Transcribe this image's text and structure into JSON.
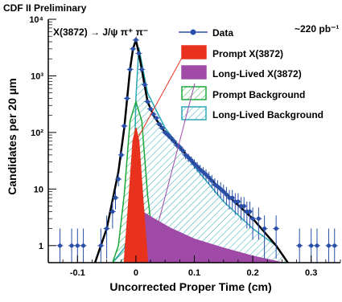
{
  "chart_data": {
    "type": "scatter",
    "top_label": "CDF II Preliminary",
    "process_label": "X(3872) → J/ψ π⁺ π⁻",
    "luminosity": "~220 pb⁻¹",
    "xlabel": "Uncorrected Proper Time (cm)",
    "ylabel": "Candidates per 20  μm",
    "x_scale": "linear",
    "y_scale": "log",
    "xlim": [
      -0.15,
      0.35
    ],
    "ylim": [
      0.5,
      10000
    ],
    "x_ticks": [
      -0.1,
      0,
      0.1,
      0.2,
      0.3
    ],
    "x_tick_labels": [
      "-0.1",
      "0",
      "0.1",
      "0.2",
      "0.3"
    ],
    "y_ticks": [
      1,
      10,
      100,
      1000,
      10000
    ],
    "y_tick_labels": [
      "1",
      "10",
      "10²",
      "10³",
      "10⁴"
    ],
    "legend_position": "top-right",
    "legend": [
      {
        "label": "Data",
        "kind": "marker",
        "color": "#2a4fa8"
      },
      {
        "label": "Prompt X(3872)",
        "kind": "fill",
        "color": "#e8321e"
      },
      {
        "label": "Long-Lived X(3872)",
        "kind": "fill",
        "color": "#a04aa8"
      },
      {
        "label": "Prompt Background",
        "kind": "hatch",
        "color": "#1aa83a"
      },
      {
        "label": "Long-Lived Background",
        "kind": "hatch",
        "color": "#2aa8b8"
      }
    ],
    "colors": {
      "data": "#2a4fa8",
      "total_fit": "#000000",
      "prompt_x": "#e8321e",
      "long_lived_x": "#a04aa8",
      "prompt_bg": "#1aa83a",
      "long_lived_bg": "#2aa8b8"
    },
    "series": [
      {
        "name": "Data",
        "x": [
          -0.13,
          -0.11,
          -0.1,
          -0.09,
          -0.06,
          -0.05,
          -0.04,
          -0.035,
          -0.03,
          -0.025,
          -0.02,
          -0.015,
          -0.01,
          -0.005,
          0.0,
          0.005,
          0.01,
          0.015,
          0.02,
          0.025,
          0.03,
          0.035,
          0.04,
          0.045,
          0.05,
          0.055,
          0.06,
          0.065,
          0.07,
          0.075,
          0.08,
          0.085,
          0.09,
          0.095,
          0.1,
          0.105,
          0.11,
          0.115,
          0.12,
          0.125,
          0.13,
          0.135,
          0.14,
          0.145,
          0.15,
          0.155,
          0.16,
          0.165,
          0.17,
          0.175,
          0.18,
          0.185,
          0.19,
          0.195,
          0.2,
          0.21,
          0.22,
          0.24,
          0.28,
          0.3,
          0.31,
          0.33,
          0.34
        ],
        "y": [
          1,
          1,
          1,
          1,
          1,
          2,
          4,
          7,
          15,
          40,
          130,
          400,
          1300,
          3000,
          4300,
          2500,
          1300,
          700,
          350,
          260,
          210,
          180,
          140,
          120,
          100,
          90,
          80,
          70,
          60,
          55,
          48,
          40,
          36,
          32,
          28,
          25,
          22,
          20,
          18,
          16,
          14,
          12,
          11,
          10,
          9,
          8,
          7,
          7,
          6,
          6,
          5,
          5,
          4,
          4,
          3,
          3,
          2,
          2,
          1,
          1,
          1,
          1,
          1
        ]
      },
      {
        "name": "Prompt X(3872)",
        "x": [
          -0.02,
          -0.01,
          -0.005,
          0.0,
          0.005,
          0.01,
          0.02
        ],
        "y": [
          0.5,
          12,
          70,
          120,
          70,
          12,
          0.5
        ]
      },
      {
        "name": "Long-Lived X(3872)",
        "x": [
          0.0,
          0.01,
          0.03,
          0.06,
          0.1,
          0.15,
          0.2,
          0.25
        ],
        "y": [
          0.5,
          4,
          3,
          2,
          1.3,
          0.9,
          0.65,
          0.5
        ]
      },
      {
        "name": "Prompt Background",
        "x": [
          -0.04,
          -0.03,
          -0.02,
          -0.01,
          0.0,
          0.01,
          0.02,
          0.03,
          0.04
        ],
        "y": [
          0.5,
          1,
          8,
          160,
          350,
          160,
          8,
          1,
          0.5
        ]
      },
      {
        "name": "Long-Lived Background",
        "x": [
          -0.04,
          -0.02,
          -0.005,
          0.0,
          0.005,
          0.02,
          0.05,
          0.1,
          0.15,
          0.2,
          0.24,
          0.25,
          0.26
        ],
        "y": [
          0.5,
          0.9,
          3,
          400,
          3200,
          500,
          120,
          25,
          6,
          2,
          1,
          0.7,
          0.5
        ]
      },
      {
        "name": "Total Fit",
        "x": [
          -0.07,
          -0.05,
          -0.03,
          -0.02,
          -0.01,
          -0.005,
          0.0,
          0.005,
          0.01,
          0.02,
          0.03,
          0.05,
          0.08,
          0.1,
          0.15,
          0.2,
          0.24,
          0.26
        ],
        "y": [
          0.5,
          2,
          20,
          120,
          1300,
          3000,
          4300,
          2500,
          1300,
          350,
          200,
          100,
          48,
          28,
          9,
          3,
          1,
          0.5
        ]
      }
    ]
  }
}
